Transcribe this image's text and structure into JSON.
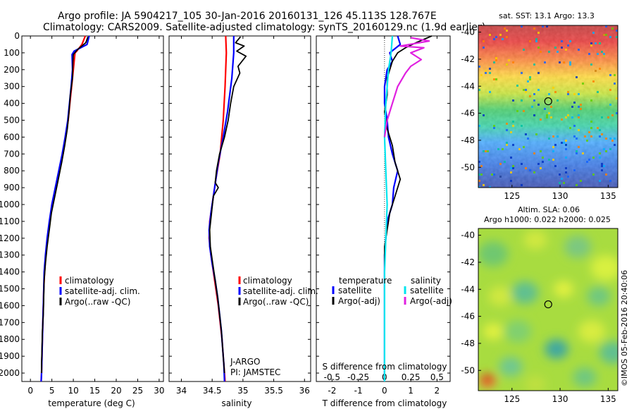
{
  "header": {
    "line1": "Argo profile: JA 5904217_105 30-Jan-2016 20160131_126 45.113S 128.767E",
    "line2": "Climatology: CARS2009. Satellite-adjusted climatology: synTS_20160129.nc (1.9d earlier)"
  },
  "side_note": "©IMOS 05-Feb-2016 20:40:06",
  "float_info": [
    "J-ARGO",
    "PI: JAMSTEC"
  ],
  "colors": {
    "climatology": "#ff0000",
    "satellite": "#0000ff",
    "argo": "#000000",
    "salinity_satellite": "#00e5ee",
    "salinity_argo": "#e020e0"
  },
  "chart_data": [
    {
      "type": "line",
      "panel": "temperature",
      "xlabel": "temperature (deg C)",
      "xlim": [
        -2,
        31
      ],
      "xticks": [
        0,
        5,
        10,
        15,
        20,
        25,
        30
      ],
      "ylim": [
        2050,
        0
      ],
      "yticks": [
        0,
        100,
        200,
        300,
        400,
        500,
        600,
        700,
        800,
        900,
        1000,
        1100,
        1200,
        1300,
        1400,
        1500,
        1600,
        1700,
        1800,
        1900,
        2000
      ],
      "legend": [
        "climatology",
        "satellite-adj. clim.",
        "Argo(..raw -QC)"
      ],
      "series": [
        {
          "name": "climatology",
          "color": "#ff0000",
          "points": [
            [
              12.8,
              0
            ],
            [
              12.0,
              50
            ],
            [
              10.8,
              90
            ],
            [
              10.4,
              100
            ],
            [
              10.0,
              200
            ],
            [
              9.6,
              300
            ],
            [
              9.2,
              400
            ],
            [
              8.8,
              500
            ],
            [
              8.2,
              600
            ],
            [
              7.6,
              700
            ],
            [
              6.8,
              800
            ],
            [
              5.9,
              900
            ],
            [
              5.0,
              1000
            ],
            [
              4.5,
              1100
            ],
            [
              4.0,
              1200
            ],
            [
              3.6,
              1300
            ],
            [
              3.3,
              1400
            ],
            [
              3.1,
              1500
            ],
            [
              3.0,
              1600
            ],
            [
              2.9,
              1700
            ],
            [
              2.8,
              1800
            ],
            [
              2.7,
              1900
            ],
            [
              2.6,
              2000
            ],
            [
              2.5,
              2050
            ]
          ]
        },
        {
          "name": "satellite-adj. clim.",
          "color": "#0000ff",
          "points": [
            [
              13.7,
              0
            ],
            [
              13.2,
              50
            ],
            [
              10.2,
              90
            ],
            [
              9.7,
              110
            ],
            [
              9.8,
              200
            ],
            [
              9.5,
              300
            ],
            [
              9.1,
              400
            ],
            [
              8.7,
              500
            ],
            [
              8.1,
              600
            ],
            [
              7.4,
              700
            ],
            [
              6.6,
              800
            ],
            [
              5.8,
              900
            ],
            [
              5.0,
              1000
            ],
            [
              4.4,
              1100
            ],
            [
              3.9,
              1200
            ],
            [
              3.5,
              1300
            ],
            [
              3.2,
              1400
            ],
            [
              3.1,
              1500
            ],
            [
              3.0,
              1600
            ],
            [
              2.9,
              1700
            ],
            [
              2.8,
              1800
            ],
            [
              2.7,
              1900
            ],
            [
              2.6,
              2000
            ],
            [
              2.5,
              2050
            ]
          ]
        },
        {
          "name": "Argo(..raw -QC)",
          "color": "#000000",
          "points": [
            [
              13.4,
              5
            ],
            [
              12.9,
              40
            ],
            [
              11.0,
              80
            ],
            [
              10.0,
              110
            ],
            [
              9.9,
              150
            ],
            [
              9.8,
              250
            ],
            [
              9.3,
              350
            ],
            [
              9.0,
              450
            ],
            [
              8.6,
              550
            ],
            [
              8.0,
              650
            ],
            [
              7.3,
              750
            ],
            [
              6.5,
              850
            ],
            [
              5.7,
              950
            ],
            [
              4.9,
              1050
            ],
            [
              4.4,
              1150
            ],
            [
              3.9,
              1250
            ],
            [
              3.5,
              1350
            ],
            [
              3.2,
              1450
            ],
            [
              3.1,
              1550
            ],
            [
              3.0,
              1650
            ],
            [
              2.8,
              1750
            ],
            [
              2.7,
              1850
            ],
            [
              2.6,
              1950
            ],
            [
              2.6,
              2000
            ]
          ]
        }
      ]
    },
    {
      "type": "line",
      "panel": "salinity",
      "xlabel": "salinity",
      "xlim": [
        33.8,
        36.1
      ],
      "xticks": [
        34,
        34.5,
        35,
        35.5,
        36
      ],
      "ylim": [
        2050,
        0
      ],
      "legend": [
        "climatology",
        "satellite-adj. clim.",
        "Argo(..raw -QC)"
      ],
      "series": [
        {
          "name": "climatology",
          "color": "#ff0000",
          "points": [
            [
              34.72,
              0
            ],
            [
              34.73,
              100
            ],
            [
              34.71,
              300
            ],
            [
              34.68,
              500
            ],
            [
              34.63,
              700
            ],
            [
              34.56,
              850
            ],
            [
              34.5,
              1000
            ],
            [
              34.46,
              1100
            ],
            [
              34.45,
              1200
            ],
            [
              34.48,
              1300
            ],
            [
              34.52,
              1400
            ],
            [
              34.56,
              1500
            ],
            [
              34.6,
              1600
            ],
            [
              34.63,
              1700
            ],
            [
              34.66,
              1800
            ],
            [
              34.68,
              1900
            ],
            [
              34.7,
              2000
            ],
            [
              34.71,
              2050
            ]
          ]
        },
        {
          "name": "satellite-adj. clim.",
          "color": "#0000ff",
          "points": [
            [
              34.85,
              0
            ],
            [
              34.85,
              100
            ],
            [
              34.82,
              250
            ],
            [
              34.75,
              450
            ],
            [
              34.68,
              600
            ],
            [
              34.6,
              750
            ],
            [
              34.54,
              900
            ],
            [
              34.48,
              1050
            ],
            [
              34.45,
              1150
            ],
            [
              34.46,
              1250
            ],
            [
              34.5,
              1350
            ],
            [
              34.55,
              1450
            ],
            [
              34.59,
              1550
            ],
            [
              34.62,
              1650
            ],
            [
              34.65,
              1750
            ],
            [
              34.67,
              1850
            ],
            [
              34.69,
              1950
            ],
            [
              34.7,
              2050
            ]
          ]
        },
        {
          "name": "Argo(..raw -QC)",
          "color": "#000000",
          "points": [
            [
              34.96,
              5
            ],
            [
              34.88,
              40
            ],
            [
              35.02,
              60
            ],
            [
              34.9,
              90
            ],
            [
              35.05,
              120
            ],
            [
              34.92,
              180
            ],
            [
              34.95,
              220
            ],
            [
              34.85,
              300
            ],
            [
              34.8,
              400
            ],
            [
              34.76,
              500
            ],
            [
              34.7,
              600
            ],
            [
              34.62,
              700
            ],
            [
              34.57,
              800
            ],
            [
              34.55,
              870
            ],
            [
              34.6,
              900
            ],
            [
              34.52,
              950
            ],
            [
              34.49,
              1050
            ],
            [
              34.46,
              1150
            ],
            [
              34.47,
              1250
            ],
            [
              34.51,
              1350
            ],
            [
              34.55,
              1450
            ],
            [
              34.59,
              1550
            ],
            [
              34.62,
              1650
            ],
            [
              34.65,
              1750
            ],
            [
              34.67,
              1850
            ],
            [
              34.69,
              1950
            ],
            [
              34.7,
              2000
            ]
          ]
        }
      ]
    },
    {
      "type": "line",
      "panel": "difference",
      "xlabel": "T difference from climatology",
      "xlabel2": "S difference from climatology",
      "xlim": [
        -2.6,
        2.5
      ],
      "xticks": [
        -2,
        -1,
        0,
        1,
        2
      ],
      "xticks_s": [
        "-0.5",
        "-0.25",
        "0",
        "0.25",
        "0.5"
      ],
      "xticks_s_pos": [
        -2,
        -1,
        0,
        1,
        2
      ],
      "ylim": [
        2050,
        0
      ],
      "legend_left_title": "temperature",
      "legend_right_title": "salinity",
      "legend": [
        "satellite",
        "Argo(-adj)",
        "satellite",
        "Argo(-adj)"
      ],
      "series": [
        {
          "name": "temperature satellite",
          "color": "#0000ff",
          "points": [
            [
              0.5,
              0
            ],
            [
              0.6,
              50
            ],
            [
              0.2,
              100
            ],
            [
              0.3,
              150
            ],
            [
              0.1,
              200
            ],
            [
              0.0,
              300
            ],
            [
              0.0,
              400
            ],
            [
              0.1,
              500
            ],
            [
              0.15,
              600
            ],
            [
              0.3,
              700
            ],
            [
              0.5,
              800
            ],
            [
              0.35,
              900
            ],
            [
              0.3,
              1000
            ],
            [
              0.1,
              1100
            ],
            [
              0.05,
              1200
            ],
            [
              0.0,
              1300
            ],
            [
              0.0,
              1500
            ],
            [
              0.0,
              1700
            ],
            [
              0.0,
              2050
            ]
          ]
        },
        {
          "name": "temperature Argo",
          "color": "#000000",
          "points": [
            [
              1.8,
              0
            ],
            [
              1.2,
              40
            ],
            [
              0.8,
              70
            ],
            [
              0.5,
              100
            ],
            [
              0.3,
              150
            ],
            [
              0.1,
              250
            ],
            [
              0.1,
              350
            ],
            [
              0.0,
              450
            ],
            [
              0.1,
              550
            ],
            [
              0.3,
              650
            ],
            [
              0.4,
              750
            ],
            [
              0.6,
              850
            ],
            [
              0.4,
              950
            ],
            [
              0.2,
              1050
            ],
            [
              0.1,
              1150
            ],
            [
              0.0,
              1250
            ],
            [
              0.0,
              1400
            ],
            [
              0.0,
              1600
            ],
            [
              0.0,
              1800
            ],
            [
              0.0,
              2000
            ]
          ]
        },
        {
          "name": "salinity satellite",
          "color": "#00e5ee",
          "points": [
            [
              0.3,
              0
            ],
            [
              0.25,
              100
            ],
            [
              0.15,
              200
            ],
            [
              0.1,
              300
            ],
            [
              0.05,
              400
            ],
            [
              0.0,
              600
            ],
            [
              0.05,
              800
            ],
            [
              0.1,
              1000
            ],
            [
              0.05,
              1200
            ],
            [
              0.0,
              1400
            ],
            [
              0.0,
              1600
            ],
            [
              0.0,
              1800
            ],
            [
              0.0,
              2050
            ]
          ]
        },
        {
          "name": "salinity Argo",
          "color": "#e020e0",
          "points": [
            [
              1.0,
              10
            ],
            [
              1.7,
              30
            ],
            [
              0.6,
              60
            ],
            [
              1.5,
              70
            ],
            [
              1.0,
              100
            ],
            [
              1.4,
              140
            ],
            [
              1.0,
              180
            ],
            [
              0.8,
              220
            ],
            [
              0.5,
              300
            ],
            [
              0.3,
              400
            ],
            [
              0.1,
              500
            ],
            [
              0.0,
              600
            ]
          ]
        }
      ]
    },
    {
      "type": "heatmap",
      "panel": "sst-map",
      "title": "sat. SST: 13.1  Argo: 13.3",
      "xlim": [
        121.5,
        136
      ],
      "ylim": [
        -51.5,
        -39.5
      ],
      "xticks": [
        125,
        130,
        135
      ],
      "yticks": [
        -40,
        -42,
        -44,
        -46,
        -48,
        -50
      ],
      "marker": {
        "lon": 128.767,
        "lat": -45.113
      }
    },
    {
      "type": "heatmap",
      "panel": "sla-map",
      "title": "Altim. SLA: 0.06",
      "subtitle": "Argo h1000: 0.022 h2000: 0.025",
      "xlim": [
        121.5,
        136
      ],
      "ylim": [
        -51.5,
        -39.5
      ],
      "xticks": [
        125,
        130,
        135
      ],
      "yticks": [
        -40,
        -42,
        -44,
        -46,
        -48,
        -50
      ],
      "marker": {
        "lon": 128.767,
        "lat": -45.113
      }
    }
  ]
}
